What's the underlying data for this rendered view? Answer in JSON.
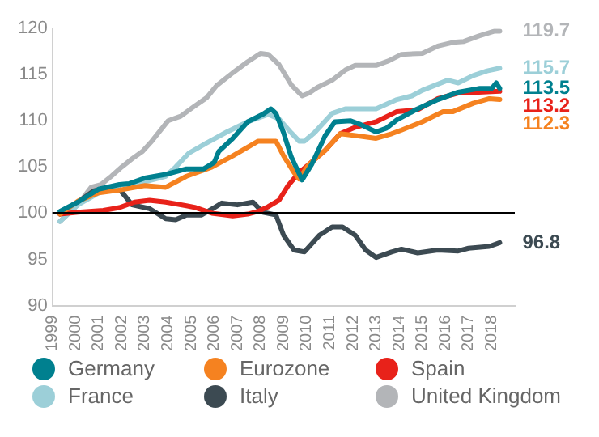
{
  "chart_data": {
    "type": "line",
    "xlim": [
      1999,
      2019
    ],
    "xticks": [
      1999,
      2000,
      2001,
      2002,
      2003,
      2004,
      2005,
      2006,
      2007,
      2008,
      2009,
      2010,
      2011,
      2012,
      2013,
      2014,
      2015,
      2016,
      2017,
      2018
    ],
    "ylim": [
      90,
      120
    ],
    "yticks": [
      90,
      95,
      100,
      105,
      110,
      115,
      120
    ],
    "grid": false,
    "legend": "bottom",
    "marker": "none",
    "line_style": "solid",
    "ref_lines": [
      {
        "axis": "y",
        "value": 100,
        "color": "#000000"
      }
    ],
    "series": [
      {
        "name": "Germany",
        "color": "#00808f",
        "x": [
          1999.33,
          2000.1,
          2001,
          2001.9,
          2002.33,
          2003,
          2003.9,
          2004.8,
          2005.55,
          2006,
          2006.2,
          2006.8,
          2007.45,
          2008.1,
          2008.45,
          2008.67,
          2009,
          2009.33,
          2009.8,
          2010.22,
          2010.8,
          2011.22,
          2011.9,
          2012.33,
          2013,
          2013.45,
          2013.9,
          2014.8,
          2015.67,
          2016.55,
          2017.45,
          2018,
          2018.2,
          2018.35
        ],
        "values": [
          100.2,
          101.2,
          102.6,
          103.1,
          103.2,
          103.8,
          104.2,
          104.8,
          104.8,
          105.5,
          106.7,
          108.1,
          109.9,
          110.7,
          111.3,
          110.8,
          108.7,
          106.1,
          103.6,
          105.3,
          108.4,
          109.9,
          110,
          109.6,
          108.8,
          109.2,
          110.1,
          111.3,
          112.3,
          113.1,
          113.5,
          113.5,
          114.1,
          113.5
        ],
        "value_labels": [
          null,
          null,
          null,
          null,
          null,
          null,
          null,
          null,
          null,
          null,
          null,
          null,
          null,
          null,
          null,
          null,
          null,
          null,
          null,
          null,
          null,
          null,
          null,
          null,
          null,
          null,
          null,
          null,
          null,
          null,
          null,
          null,
          null,
          "113.5"
        ]
      },
      {
        "name": "Eurozone",
        "color": "#f58220",
        "x": [
          1999.33,
          2000.1,
          2001,
          2001.9,
          2003,
          2003.9,
          2004.8,
          2005.9,
          2006.8,
          2007.9,
          2008.67,
          2009,
          2009.45,
          2009.67,
          2010.1,
          2010.8,
          2011.45,
          2012.1,
          2013,
          2013.67,
          2014.1,
          2015,
          2015.9,
          2016.33,
          2017.2,
          2017.9,
          2018.35
        ],
        "values": [
          99.9,
          101.3,
          102.2,
          102.5,
          103,
          102.8,
          104,
          105,
          106.2,
          107.8,
          107.8,
          106.2,
          104.4,
          103.7,
          105.3,
          106.8,
          108.6,
          108.4,
          108.1,
          108.6,
          109,
          109.9,
          111,
          111,
          111.9,
          112.4,
          112.3
        ],
        "value_labels": [
          null,
          null,
          null,
          null,
          null,
          null,
          null,
          null,
          null,
          null,
          null,
          null,
          null,
          null,
          null,
          null,
          null,
          null,
          null,
          null,
          null,
          null,
          null,
          null,
          null,
          null,
          "112.3"
        ]
      },
      {
        "name": "Spain",
        "color": "#e8221a",
        "x": [
          1999.33,
          2000.1,
          2001.2,
          2001.9,
          2002.55,
          2003.2,
          2003.9,
          2004.8,
          2005.2,
          2005.9,
          2006.8,
          2007.45,
          2007.9,
          2008.33,
          2008.8,
          2009.2,
          2009.67,
          2010.1,
          2010.8,
          2011.45,
          2012.1,
          2013,
          2013.9,
          2014.8,
          2015.67,
          2016.55,
          2017.45,
          2018.35
        ],
        "values": [
          99.9,
          100.1,
          100.3,
          100.6,
          101.2,
          101.4,
          101.2,
          100.8,
          100.6,
          100,
          99.7,
          99.9,
          100.2,
          100.7,
          101.4,
          103,
          104.4,
          105.3,
          106.8,
          108.6,
          109.3,
          109.9,
          111,
          111.2,
          112.4,
          113,
          113.1,
          113.2
        ],
        "value_labels": [
          null,
          null,
          null,
          null,
          null,
          null,
          null,
          null,
          null,
          null,
          null,
          null,
          null,
          null,
          null,
          null,
          null,
          null,
          null,
          null,
          null,
          null,
          null,
          null,
          null,
          null,
          null,
          "113.2"
        ]
      },
      {
        "name": "France",
        "color": "#9ccfd8",
        "x": [
          1999.33,
          2000.1,
          2001,
          2002,
          2003,
          2003.9,
          2004.33,
          2004.9,
          2005.67,
          2006.55,
          2007.45,
          2008.33,
          2008.8,
          2009.33,
          2009.67,
          2009.9,
          2010.33,
          2011.1,
          2011.67,
          2013,
          2013.9,
          2014.55,
          2015,
          2016.1,
          2016.55,
          2017.2,
          2017.8,
          2018.35
        ],
        "values": [
          99.1,
          100.9,
          102.2,
          103.1,
          103.4,
          104,
          105,
          106.5,
          107.6,
          108.8,
          109.9,
          110.7,
          110.2,
          108.7,
          107.8,
          107.8,
          108.7,
          110.8,
          111.3,
          111.3,
          112.3,
          112.7,
          113.3,
          114.4,
          114.1,
          114.9,
          115.4,
          115.7
        ],
        "value_labels": [
          null,
          null,
          null,
          null,
          null,
          null,
          null,
          null,
          null,
          null,
          null,
          null,
          null,
          null,
          null,
          null,
          null,
          null,
          null,
          null,
          null,
          null,
          null,
          null,
          null,
          null,
          null,
          "115.7"
        ]
      },
      {
        "name": "Italy",
        "color": "#3c4a52",
        "x": [
          1999.33,
          2000.1,
          2000.78,
          2001.45,
          2001.9,
          2002.45,
          2003.2,
          2003.9,
          2004.33,
          2004.8,
          2005.45,
          2006,
          2006.33,
          2007,
          2007.67,
          2008.1,
          2008.67,
          2009,
          2009.45,
          2009.9,
          2010.55,
          2011.1,
          2011.55,
          2012.1,
          2012.55,
          2013,
          2013.67,
          2014.1,
          2014.8,
          2015.67,
          2016.55,
          2017,
          2017.9,
          2018.35
        ],
        "values": [
          99.9,
          101.2,
          102.4,
          102.8,
          102.6,
          100.9,
          100.5,
          99.4,
          99.3,
          99.8,
          99.8,
          100.6,
          101.1,
          100.9,
          101.2,
          100.1,
          99.8,
          97.6,
          96,
          95.8,
          97.6,
          98.5,
          98.5,
          97.6,
          96,
          95.2,
          95.8,
          96.1,
          95.7,
          96,
          95.9,
          96.2,
          96.4,
          96.8
        ],
        "value_labels": [
          null,
          null,
          null,
          null,
          null,
          null,
          null,
          null,
          null,
          null,
          null,
          null,
          null,
          null,
          null,
          null,
          null,
          null,
          null,
          null,
          null,
          null,
          null,
          null,
          null,
          null,
          null,
          null,
          null,
          null,
          null,
          null,
          null,
          "96.8"
        ]
      },
      {
        "name": "United Kingdom",
        "color": "#b3b5b8",
        "x": [
          1999.33,
          2000.1,
          2000.67,
          2001.1,
          2001.55,
          2002,
          2002.45,
          2002.9,
          2003.3,
          2004,
          2004.55,
          2005.1,
          2005.67,
          2006.1,
          2006.8,
          2007.45,
          2008,
          2008.33,
          2008.8,
          2009.33,
          2009.8,
          2010.1,
          2010.45,
          2011.1,
          2011.67,
          2012.1,
          2013,
          2013.55,
          2014.1,
          2015,
          2015.67,
          2016.33,
          2016.8,
          2017.45,
          2018.1,
          2018.35
        ],
        "values": [
          99.1,
          100.9,
          102.8,
          103.1,
          104,
          105,
          105.9,
          106.7,
          107.8,
          110,
          110.5,
          111.5,
          112.5,
          113.8,
          115.2,
          116.4,
          117.3,
          117.2,
          116.1,
          113.9,
          112.7,
          113,
          113.6,
          114.4,
          115.5,
          116,
          116,
          116.5,
          117.2,
          117.3,
          118.1,
          118.5,
          118.6,
          119.2,
          119.7,
          119.7
        ],
        "value_labels": [
          null,
          null,
          null,
          null,
          null,
          null,
          null,
          null,
          null,
          null,
          null,
          null,
          null,
          null,
          null,
          null,
          null,
          null,
          null,
          null,
          null,
          null,
          null,
          null,
          null,
          null,
          null,
          null,
          null,
          null,
          null,
          null,
          null,
          null,
          null,
          "119.7"
        ]
      }
    ]
  }
}
